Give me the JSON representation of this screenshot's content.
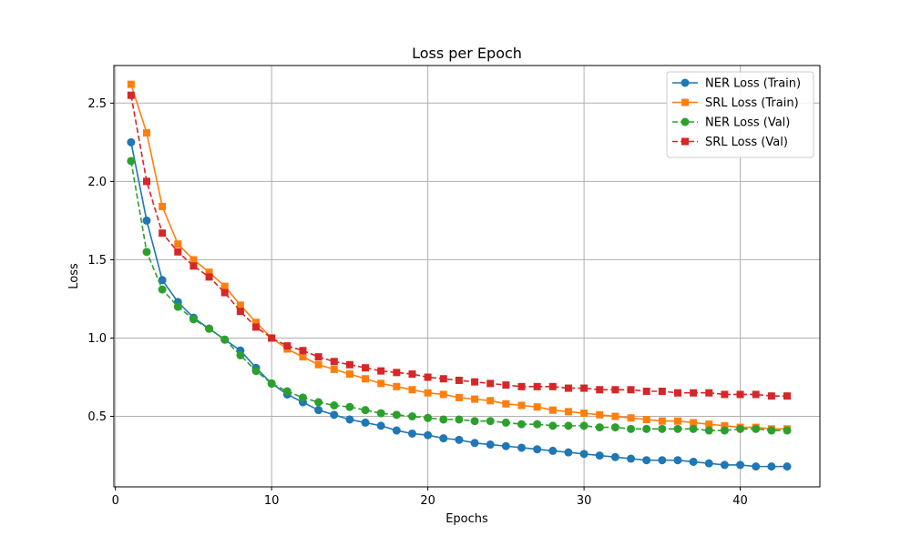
{
  "chart_data": {
    "type": "line",
    "title": "Loss per Epoch",
    "xlabel": "Epochs",
    "ylabel": "Loss",
    "xlim": [
      -0.1,
      45.1
    ],
    "ylim": [
      0.05,
      2.74
    ],
    "xticks": [
      0,
      10,
      20,
      30,
      40
    ],
    "yticks": [
      0.5,
      1.0,
      1.5,
      2.0,
      2.5
    ],
    "ytick_labels": [
      "0.5",
      "1.0",
      "1.5",
      "2.0",
      "2.5"
    ],
    "grid": true,
    "legend_position": "top-right",
    "x": [
      1,
      2,
      3,
      4,
      5,
      6,
      7,
      8,
      9,
      10,
      11,
      12,
      13,
      14,
      15,
      16,
      17,
      18,
      19,
      20,
      21,
      22,
      23,
      24,
      25,
      26,
      27,
      28,
      29,
      30,
      31,
      32,
      33,
      34,
      35,
      36,
      37,
      38,
      39,
      40,
      41,
      42,
      43
    ],
    "series": [
      {
        "name": "NER Loss (Train)",
        "color": "#1f77b4",
        "linestyle": "solid",
        "marker": "circle",
        "values": [
          2.25,
          1.75,
          1.37,
          1.23,
          1.13,
          1.06,
          0.99,
          0.92,
          0.81,
          0.71,
          0.64,
          0.59,
          0.54,
          0.51,
          0.48,
          0.46,
          0.44,
          0.41,
          0.39,
          0.38,
          0.36,
          0.35,
          0.33,
          0.32,
          0.31,
          0.3,
          0.29,
          0.28,
          0.27,
          0.26,
          0.25,
          0.24,
          0.23,
          0.22,
          0.22,
          0.22,
          0.21,
          0.2,
          0.19,
          0.19,
          0.18,
          0.18,
          0.18
        ]
      },
      {
        "name": "SRL Loss (Train)",
        "color": "#ff7f0e",
        "linestyle": "solid",
        "marker": "square",
        "values": [
          2.62,
          2.31,
          1.84,
          1.6,
          1.5,
          1.42,
          1.33,
          1.21,
          1.1,
          1.0,
          0.93,
          0.88,
          0.83,
          0.8,
          0.77,
          0.74,
          0.71,
          0.69,
          0.67,
          0.65,
          0.64,
          0.62,
          0.61,
          0.6,
          0.58,
          0.57,
          0.56,
          0.54,
          0.53,
          0.52,
          0.51,
          0.5,
          0.49,
          0.48,
          0.47,
          0.47,
          0.46,
          0.45,
          0.44,
          0.43,
          0.43,
          0.42,
          0.42
        ]
      },
      {
        "name": "NER Loss (Val)",
        "color": "#2ca02c",
        "linestyle": "dashed",
        "marker": "circle",
        "values": [
          2.13,
          1.55,
          1.31,
          1.2,
          1.12,
          1.06,
          0.99,
          0.89,
          0.79,
          0.71,
          0.66,
          0.62,
          0.59,
          0.57,
          0.56,
          0.54,
          0.52,
          0.51,
          0.5,
          0.49,
          0.48,
          0.48,
          0.47,
          0.47,
          0.46,
          0.45,
          0.45,
          0.44,
          0.44,
          0.44,
          0.43,
          0.43,
          0.42,
          0.42,
          0.42,
          0.42,
          0.42,
          0.41,
          0.41,
          0.42,
          0.42,
          0.41,
          0.41
        ]
      },
      {
        "name": "SRL Loss (Val)",
        "color": "#d62728",
        "linestyle": "dashed",
        "marker": "square",
        "values": [
          2.55,
          2.0,
          1.67,
          1.55,
          1.46,
          1.39,
          1.29,
          1.17,
          1.07,
          1.0,
          0.95,
          0.92,
          0.88,
          0.85,
          0.83,
          0.81,
          0.79,
          0.78,
          0.77,
          0.75,
          0.74,
          0.73,
          0.72,
          0.71,
          0.7,
          0.69,
          0.69,
          0.69,
          0.68,
          0.68,
          0.67,
          0.67,
          0.67,
          0.66,
          0.66,
          0.65,
          0.65,
          0.65,
          0.64,
          0.64,
          0.64,
          0.63,
          0.63
        ]
      }
    ]
  }
}
